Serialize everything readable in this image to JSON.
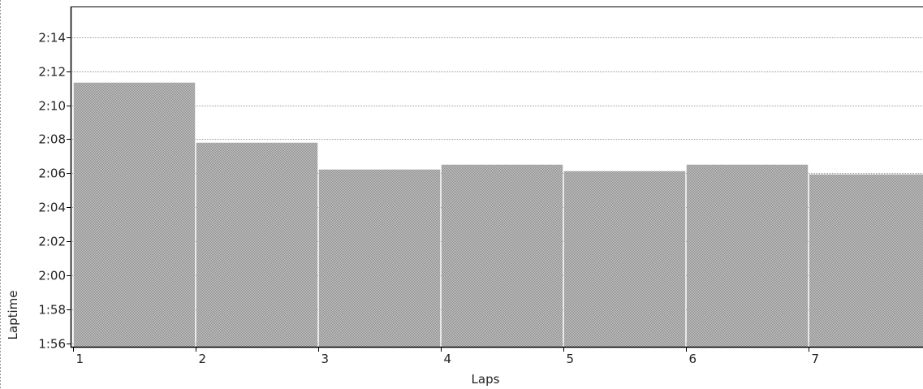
{
  "chart_data": {
    "type": "bar",
    "xlabel": "Laps",
    "ylabel": "Laptime",
    "x_ticks": [
      "1",
      "2",
      "3",
      "4",
      "5",
      "6",
      "7"
    ],
    "y_ticks": [
      "1:56",
      "1:58",
      "2:00",
      "2:02",
      "2:04",
      "2:06",
      "2:08",
      "2:10",
      "2:12",
      "2:14"
    ],
    "y_tick_seconds": [
      116,
      118,
      120,
      122,
      124,
      126,
      128,
      130,
      132,
      134
    ],
    "ylim_seconds": [
      115.8,
      135.8
    ],
    "grid": true,
    "bar_color": "#a8a8a8",
    "laps": [
      {
        "lap": "1",
        "laptime": "2:11.3"
      },
      {
        "lap": "2",
        "laptime": "2:07.8"
      },
      {
        "lap": "3",
        "laptime": "2:06.2"
      },
      {
        "lap": "4",
        "laptime": "2:06.5"
      },
      {
        "lap": "5",
        "laptime": "2:06.1"
      },
      {
        "lap": "6",
        "laptime": "2:06.5"
      },
      {
        "lap": "7",
        "laptime": "2:05.9"
      }
    ]
  }
}
